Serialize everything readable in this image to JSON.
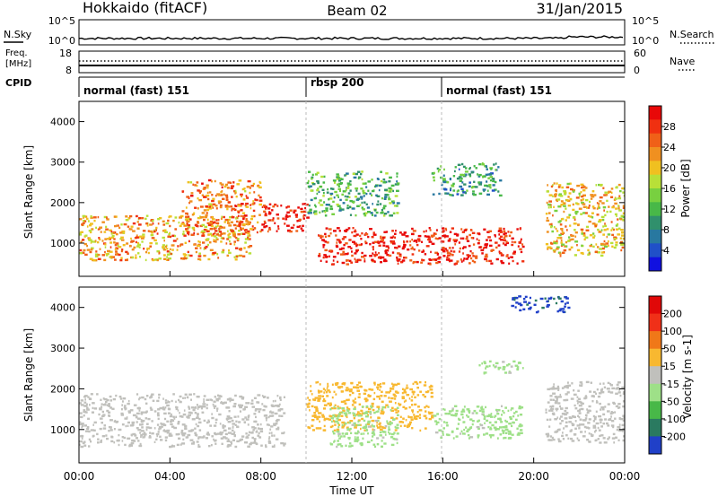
{
  "header": {
    "site": "Hokkaido (fitACF)",
    "beam": "Beam 02",
    "date": "31/Jan/2015"
  },
  "strip1": {
    "left_label": "N.Sky",
    "left_ticks": [
      "10^5",
      "10^0"
    ],
    "right_ticks": [
      "10^5",
      "10^0"
    ],
    "right_label": "N.Search",
    "right_legend_line": "dotted"
  },
  "strip2": {
    "left_label_top": "Freq.",
    "left_label_bottom": "[MHz]",
    "left_ticks": [
      "18",
      "8"
    ],
    "right_ticks": [
      "60",
      "0"
    ],
    "right_label": "Nave",
    "right_legend_line": "dotted"
  },
  "cpid": {
    "label": "CPID",
    "segments": [
      {
        "name": "normal (fast) 151",
        "start_hour": 0,
        "end_hour": 10
      },
      {
        "name": "rbsp 200",
        "start_hour": 10,
        "end_hour": 16
      },
      {
        "name": "normal (fast) 151",
        "start_hour": 16,
        "end_hour": 24
      }
    ]
  },
  "chart_data": [
    {
      "type": "heatmap",
      "parameter": "Power",
      "ylabel": "Slant Range [km]",
      "ylim": [
        180,
        4500
      ],
      "yticks": [
        "1000",
        "2000",
        "3000",
        "4000"
      ],
      "colorbar_label": "Power [dB]",
      "colorbar_ticks": [
        "28",
        "24",
        "20",
        "16",
        "12",
        "8",
        "4"
      ],
      "colorbar_range": [
        0,
        32
      ],
      "colorbar_colors": [
        "#1010e0",
        "#2050c8",
        "#2878a0",
        "#30906c",
        "#48b848",
        "#78d040",
        "#b8e038",
        "#f0c020",
        "#f09020",
        "#f06018",
        "#f03010",
        "#e80808"
      ],
      "echo_regions": [
        {
          "start_hour": 0.0,
          "end_hour": 7.5,
          "range_km": [
            600,
            1700
          ],
          "power_db": 22
        },
        {
          "start_hour": 4.5,
          "end_hour": 8.0,
          "range_km": [
            1200,
            2600
          ],
          "power_db": 24
        },
        {
          "start_hour": 8.0,
          "end_hour": 10.0,
          "range_km": [
            1300,
            2000
          ],
          "power_db": 30
        },
        {
          "start_hour": 10.0,
          "end_hour": 14.0,
          "range_km": [
            1700,
            2800
          ],
          "power_db": 12
        },
        {
          "start_hour": 10.5,
          "end_hour": 19.5,
          "range_km": [
            500,
            1400
          ],
          "power_db": 30
        },
        {
          "start_hour": 15.5,
          "end_hour": 18.5,
          "range_km": [
            2200,
            3000
          ],
          "power_db": 10
        },
        {
          "start_hour": 20.5,
          "end_hour": 24.0,
          "range_km": [
            700,
            2500
          ],
          "power_db": 20
        }
      ]
    },
    {
      "type": "heatmap",
      "parameter": "Velocity",
      "xlabel": "Time UT",
      "xticks": [
        "00:00",
        "04:00",
        "08:00",
        "12:00",
        "16:00",
        "20:00",
        "00:00"
      ],
      "xlim_hours": [
        0,
        24
      ],
      "ylabel": "Slant Range [km]",
      "ylim": [
        180,
        4500
      ],
      "yticks": [
        "1000",
        "2000",
        "3000",
        "4000"
      ],
      "colorbar_label": "Velocity [m s-1]",
      "colorbar_ticks": [
        "200",
        "100",
        "50",
        "15",
        "-15",
        "-50",
        "-100",
        "-200"
      ],
      "colorbar_range": [
        -250,
        250
      ],
      "colorbar_colors": [
        "#2040c8",
        "#2a7a60",
        "#48b848",
        "#9ee088",
        "#c0c0bc",
        "#f8b830",
        "#f07818",
        "#f03018",
        "#e00808"
      ],
      "echo_regions": [
        {
          "start_hour": 0.0,
          "end_hour": 9.0,
          "range_km": [
            600,
            1900
          ],
          "velocity": 0
        },
        {
          "start_hour": 10.0,
          "end_hour": 15.5,
          "range_km": [
            1000,
            2200
          ],
          "velocity": 45
        },
        {
          "start_hour": 11.0,
          "end_hour": 14.0,
          "range_km": [
            600,
            1600
          ],
          "velocity": -40
        },
        {
          "start_hour": 15.5,
          "end_hour": 19.5,
          "range_km": [
            800,
            1600
          ],
          "velocity": -40
        },
        {
          "start_hour": 17.5,
          "end_hour": 19.5,
          "range_km": [
            2400,
            2700
          ],
          "velocity": -40
        },
        {
          "start_hour": 19.0,
          "end_hour": 21.5,
          "range_km": [
            3900,
            4300
          ],
          "velocity": -200
        },
        {
          "start_hour": 20.5,
          "end_hour": 24.0,
          "range_km": [
            700,
            2200
          ],
          "velocity": 0
        }
      ]
    }
  ]
}
